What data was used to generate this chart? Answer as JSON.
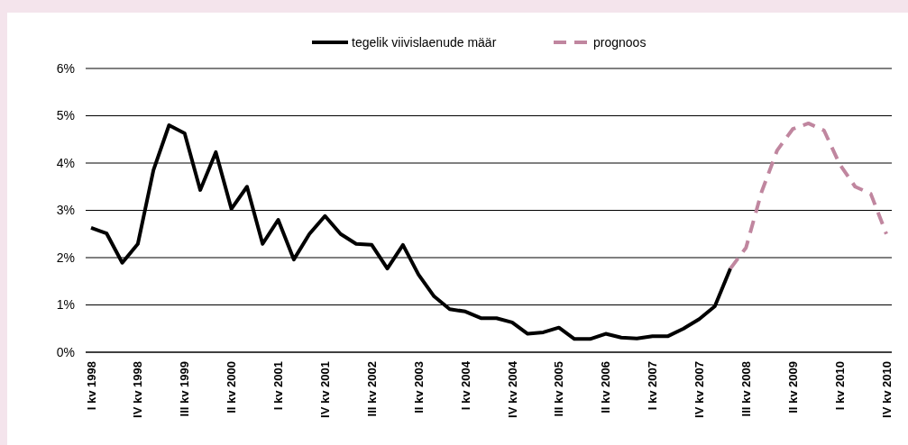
{
  "chart_data": {
    "type": "line",
    "categories": [
      "I kv 1998",
      null,
      null,
      "IV kv 1998",
      null,
      null,
      "III kv 1999",
      null,
      null,
      "II kv 2000",
      null,
      null,
      "I kv 2001",
      null,
      null,
      "IV kv 2001",
      null,
      null,
      "III kv 2002",
      null,
      null,
      "II kv 2003",
      null,
      null,
      "I kv 2004",
      null,
      null,
      "IV kv 2004",
      null,
      null,
      "III kv 2005",
      null,
      null,
      "II kv 2006",
      null,
      null,
      "I kv 2007",
      null,
      null,
      "IV kv 2007",
      null,
      null,
      "III kv 2008",
      null,
      null,
      "II kv 2009",
      null,
      null,
      "I kv 2010",
      null,
      null,
      "IV kv 2010"
    ],
    "series": [
      {
        "name": "tegelik viivislaenude määr",
        "color": "#000000",
        "line_style": "solid",
        "values": [
          2.63,
          2.51,
          1.89,
          2.29,
          3.85,
          4.8,
          4.63,
          3.43,
          4.23,
          3.03,
          3.5,
          2.29,
          2.8,
          1.96,
          2.5,
          2.88,
          2.5,
          2.29,
          2.27,
          1.77,
          2.27,
          1.64,
          1.18,
          0.91,
          0.86,
          0.72,
          0.72,
          0.63,
          0.39,
          0.42,
          0.52,
          0.28,
          0.28,
          0.39,
          0.31,
          0.29,
          0.34,
          0.34,
          0.5,
          0.7,
          0.97,
          1.77,
          null,
          null,
          null,
          null,
          null,
          null,
          null,
          null,
          null,
          null
        ]
      },
      {
        "name": "prognoos",
        "color": "#c0869f",
        "line_style": "dashed",
        "values": [
          null,
          null,
          null,
          null,
          null,
          null,
          null,
          null,
          null,
          null,
          null,
          null,
          null,
          null,
          null,
          null,
          null,
          null,
          null,
          null,
          null,
          null,
          null,
          null,
          null,
          null,
          null,
          null,
          null,
          null,
          null,
          null,
          null,
          null,
          null,
          null,
          null,
          null,
          null,
          null,
          null,
          1.77,
          2.21,
          3.39,
          4.27,
          4.72,
          4.84,
          4.69,
          3.98,
          3.5,
          3.35,
          2.5
        ]
      }
    ],
    "ylim": [
      0,
      6
    ],
    "yticks": [
      {
        "value": 0,
        "label": "0%"
      },
      {
        "value": 1,
        "label": "1%"
      },
      {
        "value": 2,
        "label": "2%"
      },
      {
        "value": 3,
        "label": "3%"
      },
      {
        "value": 4,
        "label": "4%"
      },
      {
        "value": 5,
        "label": "5%"
      },
      {
        "value": 6,
        "label": "6%"
      }
    ],
    "grid": "y",
    "legend": "top"
  }
}
